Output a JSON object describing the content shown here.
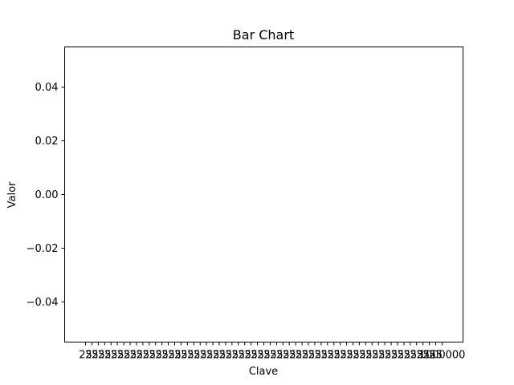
{
  "chart_data": {
    "type": "bar",
    "title": "Bar Chart",
    "xlabel": "Clave",
    "ylabel": "Valor",
    "ylim": [
      -0.055,
      0.055
    ],
    "yticks": [
      "−0.04",
      "−0.02",
      "0.00",
      "0.02",
      "0.04"
    ],
    "ytick_values": [
      -0.04,
      -0.02,
      0.0,
      0.02,
      0.04
    ],
    "categories": [
      "25",
      "25",
      "25",
      "25",
      "25",
      "25",
      "25",
      "25",
      "25",
      "25",
      "25",
      "25",
      "25",
      "25",
      "25",
      "25",
      "25",
      "25",
      "25",
      "25",
      "25",
      "25",
      "25",
      "25",
      "25",
      "25",
      "25",
      "25",
      "25",
      "25",
      "25",
      "25",
      "25",
      "25",
      "25",
      "25",
      "25",
      "25",
      "25",
      "25",
      "25",
      "25",
      "25",
      "25",
      "25",
      "25",
      "25",
      "25",
      "25",
      "25",
      "25",
      "25",
      "25",
      "25",
      "25",
      "25",
      "1000000"
    ],
    "values": [
      0,
      0,
      0,
      0,
      0,
      0,
      0,
      0,
      0,
      0,
      0,
      0,
      0,
      0,
      0,
      0,
      0,
      0,
      0,
      0,
      0,
      0,
      0,
      0,
      0,
      0,
      0,
      0,
      0,
      0,
      0,
      0,
      0,
      0,
      0,
      0,
      0,
      0,
      0,
      0,
      0,
      0,
      0,
      0,
      0,
      0,
      0,
      0,
      0,
      0,
      0,
      0,
      0,
      0,
      0,
      0,
      0
    ],
    "grid": false,
    "colors": {
      "axis": "#000000",
      "bar": "#1f77b4",
      "background": "#ffffff"
    }
  }
}
